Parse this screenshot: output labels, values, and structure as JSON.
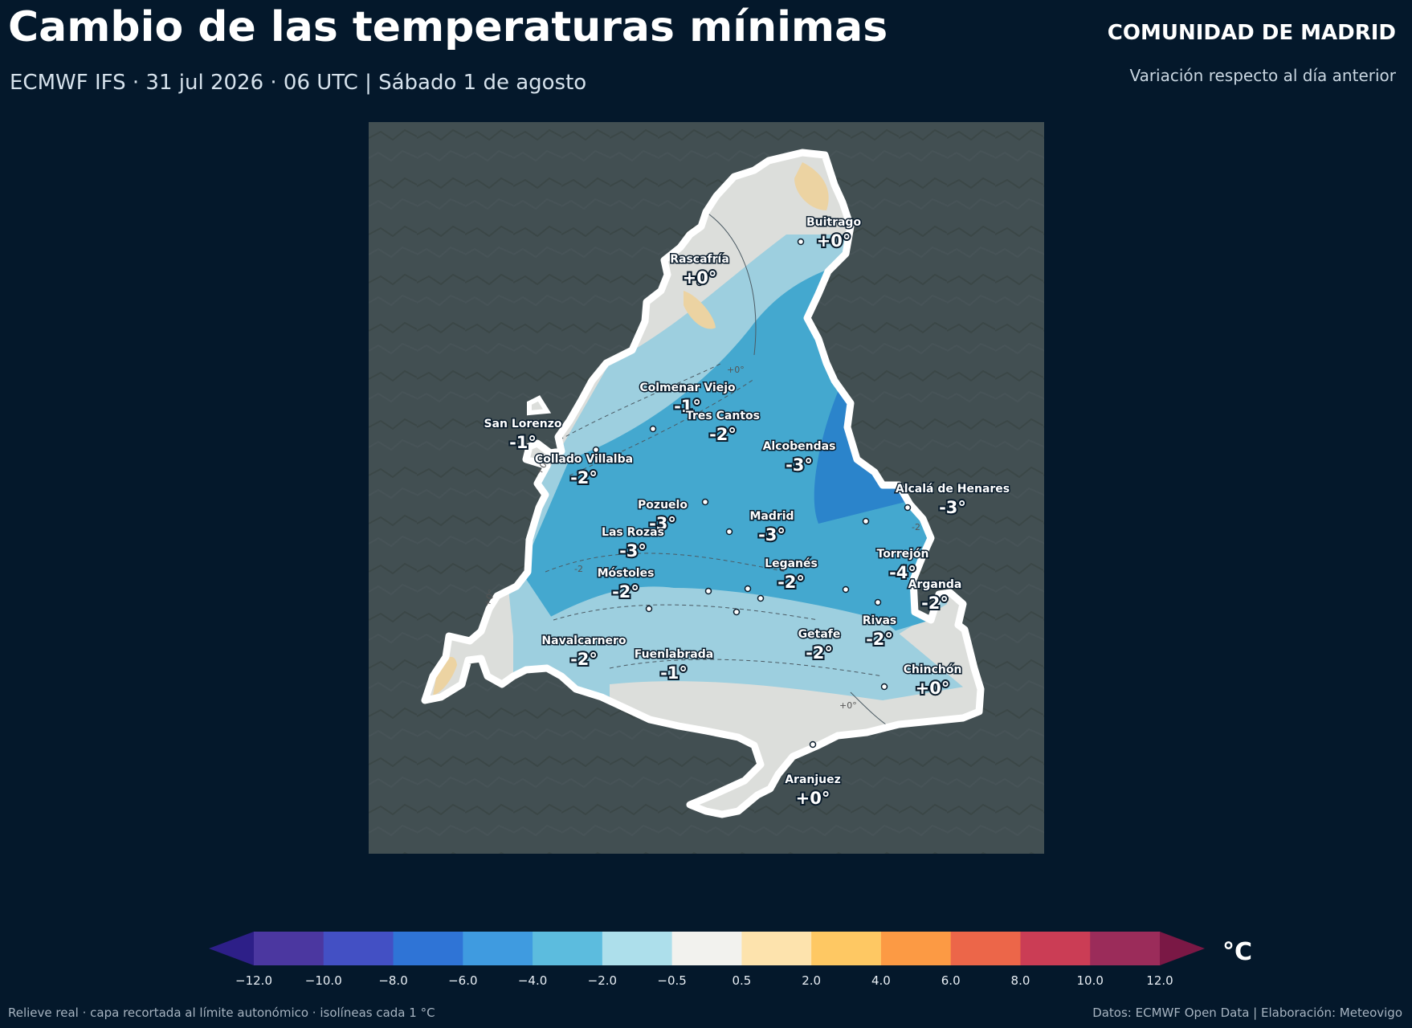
{
  "header": {
    "title": "Cambio de las temperaturas mínimas",
    "subtitle": "ECMWF IFS · 31 jul 2026 · 06 UTC  |  Sábado 1 de agosto",
    "region": "COMUNIDAD DE MADRID",
    "region_sub": "Variación respecto al día anterior"
  },
  "map": {
    "cities": [
      {
        "name": "Buitrago",
        "value": "+0°"
      },
      {
        "name": "Rascafría",
        "value": "+0°"
      },
      {
        "name": "Colmenar Viejo",
        "value": "-1°"
      },
      {
        "name": "Tres Cantos",
        "value": "-2°"
      },
      {
        "name": "San Lorenzo",
        "value": "-1°"
      },
      {
        "name": "Collado Villalba",
        "value": "-2°"
      },
      {
        "name": "Alcobendas",
        "value": "-3°"
      },
      {
        "name": "Alcalá de Henares",
        "value": "-3°"
      },
      {
        "name": "Pozuelo",
        "value": "-3°"
      },
      {
        "name": "Madrid",
        "value": "-3°"
      },
      {
        "name": "Las Rozas",
        "value": "-3°"
      },
      {
        "name": "Torrejón",
        "value": "-4°"
      },
      {
        "name": "Móstoles",
        "value": "-2°"
      },
      {
        "name": "Leganés",
        "value": "-2°"
      },
      {
        "name": "Arganda",
        "value": "-2°"
      },
      {
        "name": "Rivas",
        "value": "-2°"
      },
      {
        "name": "Getafe",
        "value": "-2°"
      },
      {
        "name": "Navalcarnero",
        "value": "-2°"
      },
      {
        "name": "Fuenlabrada",
        "value": "-1°"
      },
      {
        "name": "Chinchón",
        "value": "+0°"
      },
      {
        "name": "Aranjuez",
        "value": "+0°"
      }
    ],
    "isoline_labels": [
      "+0°",
      "+0°",
      "+0°",
      "+0°",
      "-2",
      "-2"
    ]
  },
  "colorbar": {
    "unit": "°C",
    "ticks": [
      "−12.0",
      "−10.0",
      "−8.0",
      "−6.0",
      "−4.0",
      "−2.0",
      "−0.5",
      "0.5",
      "2.0",
      "4.0",
      "6.0",
      "8.0",
      "10.0",
      "12.0"
    ],
    "colors": [
      "#4b37a0",
      "#4350c4",
      "#2f74d6",
      "#3f9be0",
      "#5cbcde",
      "#addfeb",
      "#f2f2ee",
      "#fde3ad",
      "#fec863",
      "#fc9a44",
      "#ec6649",
      "#cb3d55",
      "#9b2c5a"
    ],
    "under_color": "#2d1f88",
    "over_color": "#7a1845"
  },
  "footer": {
    "left": "Relieve real · capa recortada al límite autonómico · isolíneas cada 1 °C",
    "right": "Datos: ECMWF Open Data | Elaboración: Meteovigo"
  }
}
